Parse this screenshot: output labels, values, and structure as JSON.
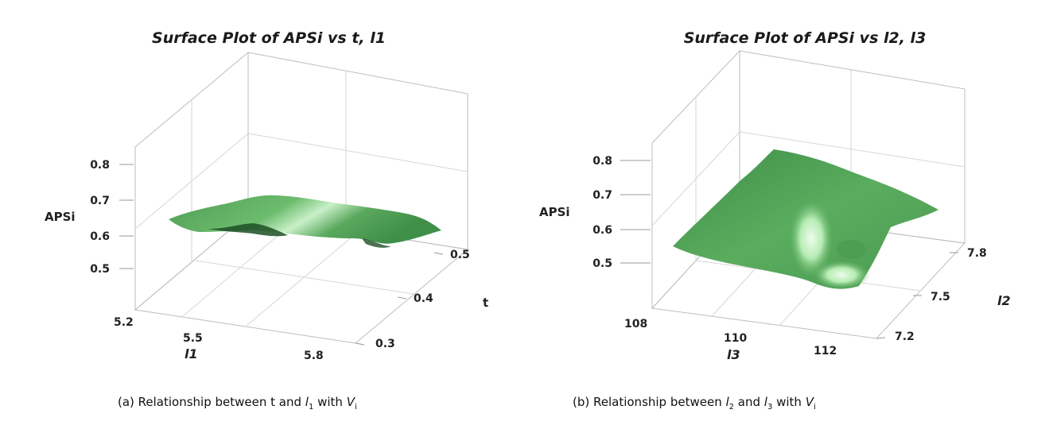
{
  "chart_data": [
    {
      "type": "surface",
      "title": "Surface Plot of APSi vs t, l1",
      "zlabel": "APSi",
      "xlabel": "l1",
      "ylabel": "t",
      "z_ticks": [
        "0.5",
        "0.6",
        "0.7",
        "0.8"
      ],
      "x_ticks": [
        "5.2",
        "5.5",
        "5.8"
      ],
      "y_ticks": [
        "0.3",
        "0.4",
        "0.5"
      ],
      "zlim": [
        0.4,
        0.85
      ],
      "surface_color": "#5aa85e",
      "corner_values": {
        "x_low_y_low": 0.62,
        "x_high_y_low": 0.58,
        "x_low_y_high": 0.66,
        "x_high_y_high": 0.62
      }
    },
    {
      "type": "surface",
      "title": "Surface Plot of APSi vs l2, l3",
      "zlabel": "APSi",
      "xlabel": "l3",
      "ylabel": "l2",
      "z_ticks": [
        "0.5",
        "0.6",
        "0.7",
        "0.8"
      ],
      "x_ticks": [
        "108",
        "110",
        "112"
      ],
      "y_ticks": [
        "7.2",
        "7.5",
        "7.8"
      ],
      "zlim": [
        0.4,
        0.85
      ],
      "surface_color": "#5aa85e",
      "corner_values": {
        "x_low_y_low": 0.56,
        "x_high_y_low": 0.5,
        "x_low_y_high": 0.78,
        "x_high_y_high": 0.68
      }
    }
  ],
  "captions": {
    "a": {
      "prefix": "(a)   Relationship between t and ",
      "var1": "l",
      "sub1": "1",
      "mid": " with ",
      "var2": "V",
      "sub2": "i"
    },
    "b": {
      "prefix": "(b) Relationship between ",
      "var1": "l",
      "sub1": "2",
      "mid": " and ",
      "var2": "l",
      "sub2": "3",
      "mid2": " with ",
      "var3": "V",
      "sub3": "i"
    }
  }
}
